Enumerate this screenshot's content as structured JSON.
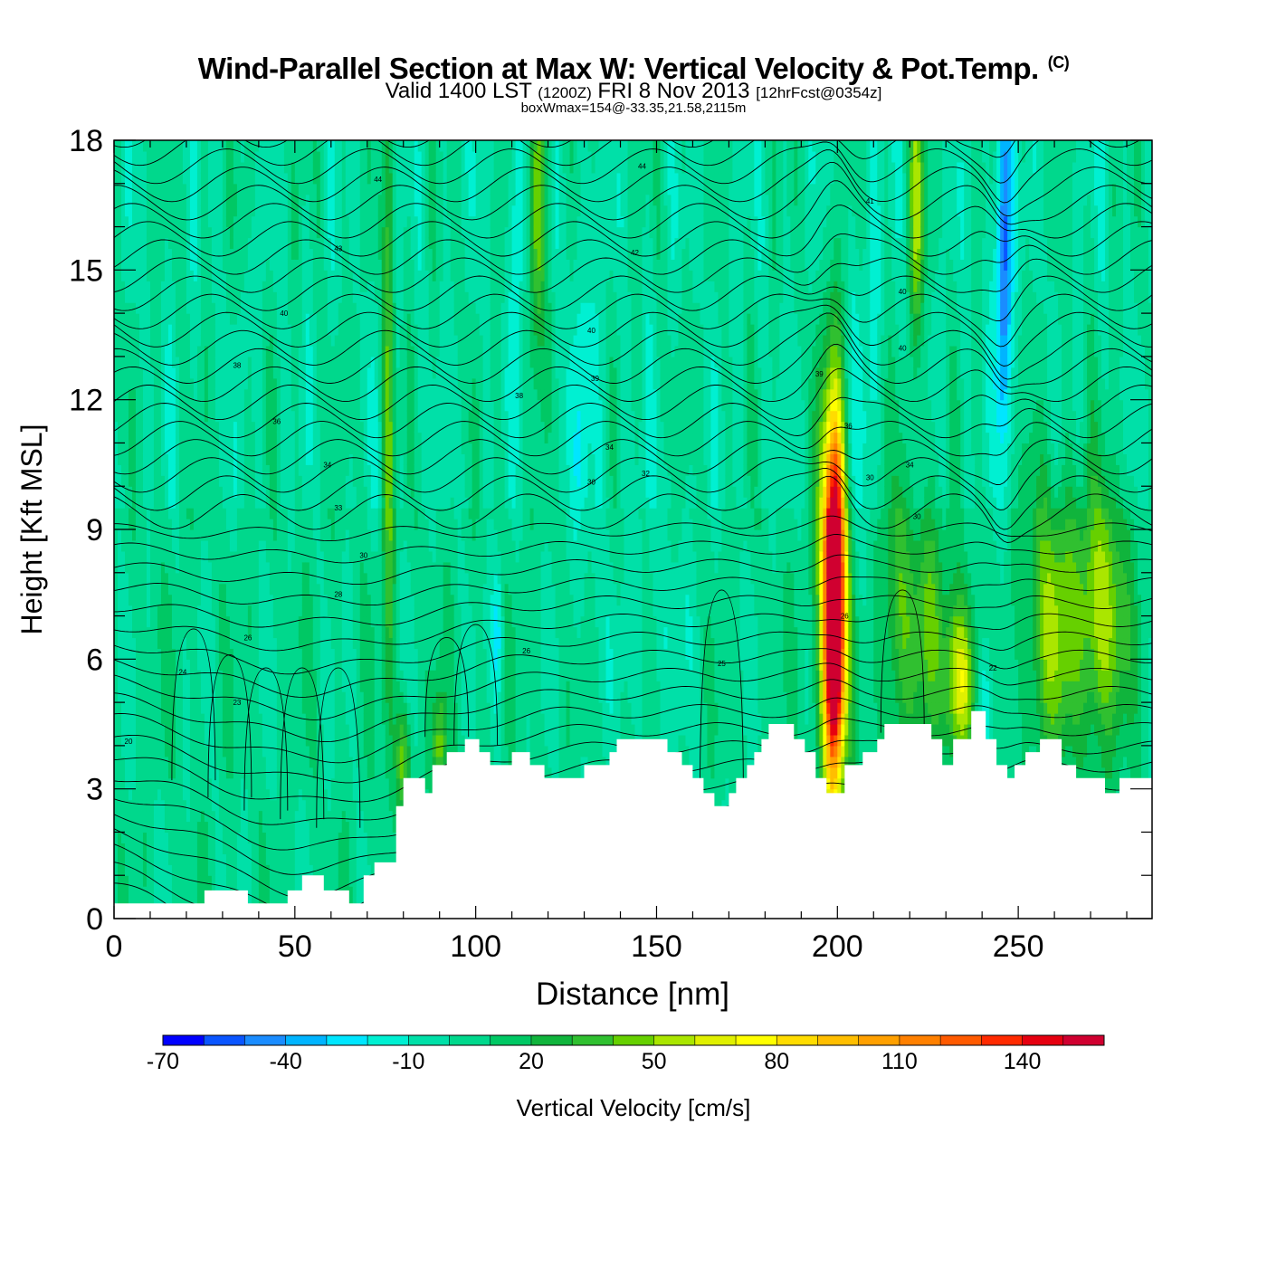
{
  "header": {
    "title": "Wind-Parallel Section at Max W: Vertical Velocity & Pot.Temp.",
    "copyright": "(C)",
    "valid_prefix": "Valid 1400 LST",
    "valid_z": "(1200Z)",
    "valid_date": "FRI 8 Nov 2013",
    "forecast": "[12hrFcst@0354z]",
    "box_wmax": "boxWmax=154@-33.35,21.58,2115m"
  },
  "chart_data": {
    "type": "heatmap",
    "title": "Wind-Parallel Section at Max W: Vertical Velocity & Pot.Temp.",
    "xlabel": "Distance [nm]",
    "ylabel": "Height [Kft MSL]",
    "xlim": [
      0,
      287
    ],
    "ylim": [
      0,
      18
    ],
    "x_ticks": [
      "0",
      "50",
      "100",
      "150",
      "200",
      "250"
    ],
    "y_ticks": [
      "0",
      "3",
      "6",
      "9",
      "12",
      "15",
      "18"
    ],
    "colorbar": {
      "label": "Vertical Velocity [cm/s]",
      "min": -70,
      "max": 160,
      "step": 10,
      "tick_labels": [
        "-70",
        "-40",
        "-10",
        "20",
        "50",
        "80",
        "110",
        "140"
      ],
      "colors": [
        "#0000ff",
        "#0a55ff",
        "#1a8cff",
        "#00b4ff",
        "#00e6ff",
        "#00f0d2",
        "#00e0a8",
        "#00d88c",
        "#00c864",
        "#10b43c",
        "#30c030",
        "#66d000",
        "#aae600",
        "#e0f000",
        "#ffff00",
        "#ffdc00",
        "#ffbe00",
        "#ffa000",
        "#ff8000",
        "#ff5a00",
        "#ff2a00",
        "#e60010",
        "#d00030"
      ]
    },
    "terrain_kft": [
      [
        0,
        0.35
      ],
      [
        25,
        0.35
      ],
      [
        25,
        0.65
      ],
      [
        37,
        0.65
      ],
      [
        37,
        0.35
      ],
      [
        48,
        0.35
      ],
      [
        48,
        0.65
      ],
      [
        52,
        0.65
      ],
      [
        52,
        1.0
      ],
      [
        58,
        1.0
      ],
      [
        58,
        0.65
      ],
      [
        65,
        0.65
      ],
      [
        65,
        0.35
      ],
      [
        69,
        0.35
      ],
      [
        69,
        1.0
      ],
      [
        72,
        1.0
      ],
      [
        72,
        1.3
      ],
      [
        78,
        1.3
      ],
      [
        78,
        2.6
      ],
      [
        80,
        2.6
      ],
      [
        80,
        3.25
      ],
      [
        86,
        3.25
      ],
      [
        86,
        2.9
      ],
      [
        88,
        2.9
      ],
      [
        88,
        3.55
      ],
      [
        92,
        3.55
      ],
      [
        92,
        3.85
      ],
      [
        97,
        3.85
      ],
      [
        97,
        4.15
      ],
      [
        101,
        4.15
      ],
      [
        101,
        3.85
      ],
      [
        104,
        3.85
      ],
      [
        104,
        3.55
      ],
      [
        110,
        3.55
      ],
      [
        110,
        3.85
      ],
      [
        115,
        3.85
      ],
      [
        115,
        3.55
      ],
      [
        119,
        3.55
      ],
      [
        119,
        3.25
      ],
      [
        130,
        3.25
      ],
      [
        130,
        3.55
      ],
      [
        137,
        3.55
      ],
      [
        137,
        3.85
      ],
      [
        139,
        3.85
      ],
      [
        139,
        4.15
      ],
      [
        153,
        4.15
      ],
      [
        153,
        3.85
      ],
      [
        157,
        3.85
      ],
      [
        157,
        3.55
      ],
      [
        160,
        3.55
      ],
      [
        160,
        3.25
      ],
      [
        163,
        3.25
      ],
      [
        163,
        2.9
      ],
      [
        166,
        2.9
      ],
      [
        166,
        2.6
      ],
      [
        170,
        2.6
      ],
      [
        170,
        2.9
      ],
      [
        172,
        2.9
      ],
      [
        172,
        3.25
      ],
      [
        175,
        3.25
      ],
      [
        175,
        3.55
      ],
      [
        177,
        3.55
      ],
      [
        177,
        3.85
      ],
      [
        179,
        3.85
      ],
      [
        179,
        4.15
      ],
      [
        181,
        4.15
      ],
      [
        181,
        4.5
      ],
      [
        188,
        4.5
      ],
      [
        188,
        4.15
      ],
      [
        191,
        4.15
      ],
      [
        191,
        3.85
      ],
      [
        194,
        3.85
      ],
      [
        194,
        3.25
      ],
      [
        197,
        3.25
      ],
      [
        197,
        2.9
      ],
      [
        202,
        2.9
      ],
      [
        202,
        3.55
      ],
      [
        207,
        3.55
      ],
      [
        207,
        3.85
      ],
      [
        211,
        3.85
      ],
      [
        211,
        4.15
      ],
      [
        213,
        4.15
      ],
      [
        213,
        4.5
      ],
      [
        226,
        4.5
      ],
      [
        226,
        4.15
      ],
      [
        229,
        4.15
      ],
      [
        229,
        3.55
      ],
      [
        232,
        3.55
      ],
      [
        232,
        4.15
      ],
      [
        237,
        4.15
      ],
      [
        237,
        4.8
      ],
      [
        241,
        4.8
      ],
      [
        241,
        4.15
      ],
      [
        244,
        4.15
      ],
      [
        244,
        3.55
      ],
      [
        247,
        3.55
      ],
      [
        247,
        3.25
      ],
      [
        249,
        3.25
      ],
      [
        249,
        3.55
      ],
      [
        252,
        3.55
      ],
      [
        252,
        3.85
      ],
      [
        256,
        3.85
      ],
      [
        256,
        4.15
      ],
      [
        262,
        4.15
      ],
      [
        262,
        3.55
      ],
      [
        266,
        3.55
      ],
      [
        266,
        3.25
      ],
      [
        274,
        3.25
      ],
      [
        274,
        2.9
      ],
      [
        278,
        2.9
      ],
      [
        278,
        3.25
      ],
      [
        287,
        3.25
      ]
    ],
    "w_features": [
      {
        "x": 199,
        "z": 7.0,
        "hw": 1.8,
        "hz": 2.6,
        "w": 150
      },
      {
        "x": 199,
        "z": 7.8,
        "hw": 3.0,
        "hz": 3.6,
        "w": 90
      },
      {
        "x": 234,
        "z": 5.5,
        "hw": 3.0,
        "hz": 1.4,
        "w": 70
      },
      {
        "x": 273,
        "z": 7.0,
        "hw": 5.0,
        "hz": 2.2,
        "w": 55
      },
      {
        "x": 259,
        "z": 7.0,
        "hw": 5.0,
        "hz": 2.4,
        "w": 45
      },
      {
        "x": 217,
        "z": 7.0,
        "hw": 4.0,
        "hz": 2.4,
        "w": 35
      },
      {
        "x": 226,
        "z": 7.0,
        "hw": 3.0,
        "hz": 2.0,
        "w": 30
      },
      {
        "x": 117,
        "z": 16.5,
        "hw": 1.6,
        "hz": 2.4,
        "w": 60
      },
      {
        "x": 76,
        "z": 12.0,
        "hw": 1.2,
        "hz": 5.5,
        "w": 40
      },
      {
        "x": 222,
        "z": 16.5,
        "hw": 1.5,
        "hz": 2.5,
        "w": 50
      },
      {
        "x": 246,
        "z": 15.5,
        "hw": 1.5,
        "hz": 3.0,
        "w": -60
      },
      {
        "x": 112,
        "z": 16.5,
        "hw": 1.4,
        "hz": 2.2,
        "w": -30
      },
      {
        "x": 106,
        "z": 6.5,
        "hw": 1.2,
        "hz": 1.2,
        "w": -30
      },
      {
        "x": 241,
        "z": 5.0,
        "hw": 1.8,
        "hz": 1.4,
        "w": -30
      },
      {
        "x": 207,
        "z": 12.0,
        "hw": 3.0,
        "hz": 4.0,
        "w": -15
      },
      {
        "x": 130,
        "z": 11.5,
        "hw": 4.0,
        "hz": 4.5,
        "w": -12
      },
      {
        "x": 150,
        "z": 7.0,
        "hw": 8.0,
        "hz": 2.2,
        "w": -10
      },
      {
        "x": 90,
        "z": 4.0,
        "hw": 1.5,
        "hz": 0.9,
        "w": 40
      },
      {
        "x": 80,
        "z": 3.8,
        "hw": 1.5,
        "hz": 0.9,
        "w": 40
      }
    ],
    "contour_labels": [
      {
        "x": 73,
        "z": 17.1,
        "text": "44"
      },
      {
        "x": 146,
        "z": 17.4,
        "text": "44"
      },
      {
        "x": 62,
        "z": 15.5,
        "text": "43"
      },
      {
        "x": 144,
        "z": 15.4,
        "text": "42"
      },
      {
        "x": 209,
        "z": 16.6,
        "text": "41"
      },
      {
        "x": 218,
        "z": 14.5,
        "text": "40"
      },
      {
        "x": 47,
        "z": 14.0,
        "text": "40"
      },
      {
        "x": 132,
        "z": 13.6,
        "text": "40"
      },
      {
        "x": 218,
        "z": 13.2,
        "text": "40"
      },
      {
        "x": 34,
        "z": 12.8,
        "text": "38"
      },
      {
        "x": 133,
        "z": 12.5,
        "text": "39"
      },
      {
        "x": 195,
        "z": 12.6,
        "text": "39"
      },
      {
        "x": 112,
        "z": 12.1,
        "text": "38"
      },
      {
        "x": 45,
        "z": 11.5,
        "text": "36"
      },
      {
        "x": 203,
        "z": 11.4,
        "text": "36"
      },
      {
        "x": 137,
        "z": 10.9,
        "text": "34"
      },
      {
        "x": 59,
        "z": 10.5,
        "text": "34"
      },
      {
        "x": 220,
        "z": 10.5,
        "text": "34"
      },
      {
        "x": 147,
        "z": 10.3,
        "text": "32"
      },
      {
        "x": 132,
        "z": 10.1,
        "text": "30"
      },
      {
        "x": 209,
        "z": 10.2,
        "text": "30"
      },
      {
        "x": 62,
        "z": 9.5,
        "text": "33"
      },
      {
        "x": 222,
        "z": 9.3,
        "text": "30"
      },
      {
        "x": 69,
        "z": 8.4,
        "text": "30"
      },
      {
        "x": 62,
        "z": 7.5,
        "text": "28"
      },
      {
        "x": 37,
        "z": 6.5,
        "text": "26"
      },
      {
        "x": 114,
        "z": 6.2,
        "text": "26"
      },
      {
        "x": 202,
        "z": 7.0,
        "text": "26"
      },
      {
        "x": 168,
        "z": 5.9,
        "text": "25"
      },
      {
        "x": 243,
        "z": 5.8,
        "text": "22"
      },
      {
        "x": 19,
        "z": 5.7,
        "text": "24"
      },
      {
        "x": 34,
        "z": 5.0,
        "text": "23"
      },
      {
        "x": 4,
        "z": 4.1,
        "text": "20"
      }
    ]
  }
}
